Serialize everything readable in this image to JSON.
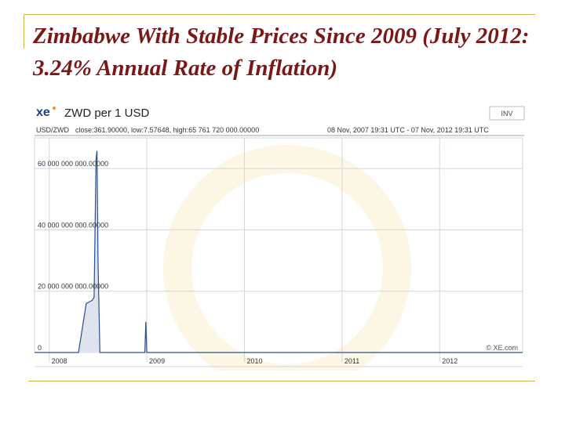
{
  "slide": {
    "title": "Zimbabwe With Stable Prices Since 2009 (July 2012: 3.24% Annual Rate of Inflation)"
  },
  "chart_header": {
    "logo_text": "xe",
    "pair_title": "ZWD per 1 USD",
    "inv_label": "INV",
    "pair_code": "USD/ZWD",
    "stats": "close:361.90000, low:7.57648, high:65 761 720 000.00000",
    "date_range": "08 Nov, 2007 19:31 UTC - 07 Nov, 2012 19:31 UTC",
    "watermark": "© XE.com"
  },
  "colors": {
    "title": "#7a1717",
    "line": "#2a4f8f",
    "area_fill": "#dfe3ee",
    "grid": "#cfd6e2",
    "logo_accent": "#1f3f8a",
    "frame": "#c9b64a"
  },
  "chart_data": {
    "type": "line",
    "xlabel": "",
    "ylabel": "",
    "grid": true,
    "x_ticks": [
      "2008",
      "2009",
      "2010",
      "2011",
      "2012"
    ],
    "y_ticks": [
      "0",
      "20 000 000 000.00000",
      "40 000 000 000.00000",
      "60 000 000 000.00000"
    ],
    "y_tick_values": [
      0,
      20000000000,
      40000000000,
      60000000000
    ],
    "ylim": [
      0,
      70000000000
    ],
    "xlim": [
      2007.85,
      2012.85
    ],
    "series": [
      {
        "points": [
          [
            2007.85,
            0
          ],
          [
            2008.0,
            0
          ],
          [
            2008.15,
            0
          ],
          [
            2008.3,
            0
          ],
          [
            2008.35,
            10000000000
          ],
          [
            2008.38,
            16000000000
          ],
          [
            2008.44,
            17000000000
          ],
          [
            2008.46,
            18000000000
          ],
          [
            2008.48,
            63000000000
          ],
          [
            2008.49,
            65761720000
          ],
          [
            2008.5,
            30000000000
          ],
          [
            2008.52,
            0
          ],
          [
            2008.98,
            0
          ],
          [
            2008.99,
            10000000000
          ],
          [
            2009.0,
            0
          ],
          [
            2012.85,
            0
          ]
        ]
      }
    ]
  }
}
